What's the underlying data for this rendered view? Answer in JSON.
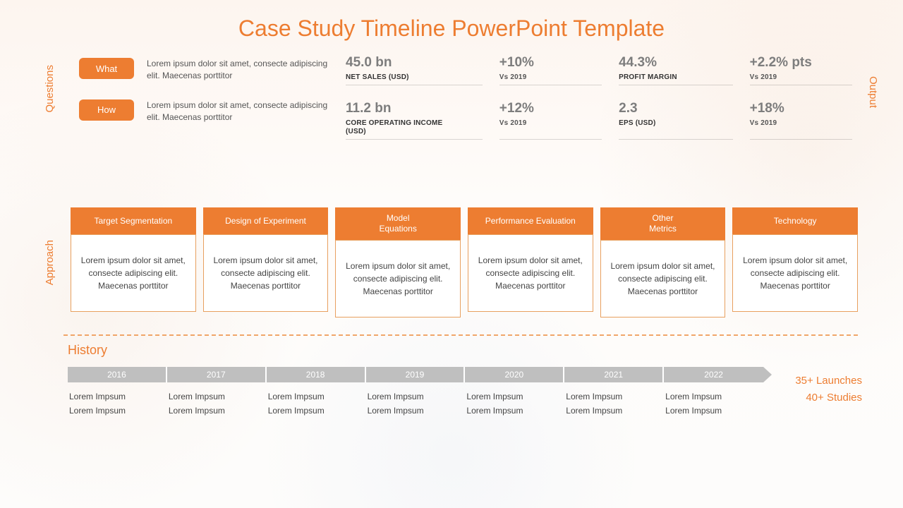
{
  "colors": {
    "accent": "#ed7d31",
    "accent_dark": "#d96f2a",
    "metric_text": "#7d7d7d",
    "timeline_gray": "#bfbfbf"
  },
  "title": "Case Study Timeline PowerPoint Template",
  "side_labels": {
    "questions": "Questions",
    "approach": "Approach",
    "output": "Output"
  },
  "questions": [
    {
      "tag": "What",
      "text": "Lorem ipsum dolor sit amet, consecte adipiscing elit. Maecenas porttitor"
    },
    {
      "tag": "How",
      "text": "Lorem ipsum dolor sit amet, consecte adipiscing elit. Maecenas porttitor"
    }
  ],
  "metrics": {
    "row1": [
      {
        "value": "45.0 bn",
        "label": "NET SALES (USD)"
      },
      {
        "value": "+10%",
        "label": "Vs 2019",
        "muted": true
      },
      {
        "value": "44.3%",
        "label": "PROFIT MARGIN"
      },
      {
        "value": "+2.2% pts",
        "label": "Vs 2019",
        "muted": true
      }
    ],
    "row2": [
      {
        "value": "11.2 bn",
        "label": "CORE OPERATING INCOME (USD)"
      },
      {
        "value": "+12%",
        "label": "Vs 2019",
        "muted": true
      },
      {
        "value": "2.3",
        "label": "EPS (USD)"
      },
      {
        "value": "+18%",
        "label": "Vs 2019",
        "muted": true
      }
    ]
  },
  "approach": [
    {
      "head": "Target Segmentation",
      "body": "Lorem ipsum dolor sit amet, consecte adipiscing elit. Maecenas porttitor"
    },
    {
      "head": "Design of Experiment",
      "body": "Lorem ipsum dolor sit amet, consecte adipiscing elit. Maecenas porttitor"
    },
    {
      "head": "Model\nEquations",
      "body": "Lorem ipsum dolor sit amet, consecte adipiscing elit. Maecenas porttitor"
    },
    {
      "head": "Performance Evaluation",
      "body": "Lorem ipsum dolor sit amet, consecte adipiscing elit. Maecenas porttitor"
    },
    {
      "head": "Other\nMetrics",
      "body": "Lorem ipsum dolor sit amet, consecte adipiscing elit. Maecenas porttitor"
    },
    {
      "head": "Technology",
      "body": "Lorem ipsum dolor sit amet, consecte adipiscing elit. Maecenas porttitor"
    }
  ],
  "history": {
    "title": "History",
    "years": [
      "2016",
      "2017",
      "2018",
      "2019",
      "2020",
      "2021",
      "2022"
    ],
    "items": [
      [
        "Lorem Impsum",
        "Lorem Impsum"
      ],
      [
        "Lorem Impsum",
        "Lorem Impsum"
      ],
      [
        "Lorem Impsum",
        "Lorem Impsum"
      ],
      [
        "Lorem Impsum",
        "Lorem Impsum"
      ],
      [
        "Lorem Impsum",
        "Lorem Impsum"
      ],
      [
        "Lorem Impsum",
        "Lorem Impsum"
      ],
      [
        "Lorem Impsum",
        "Lorem Impsum"
      ]
    ],
    "summary": [
      "35+ Launches",
      "40+ Studies"
    ]
  }
}
